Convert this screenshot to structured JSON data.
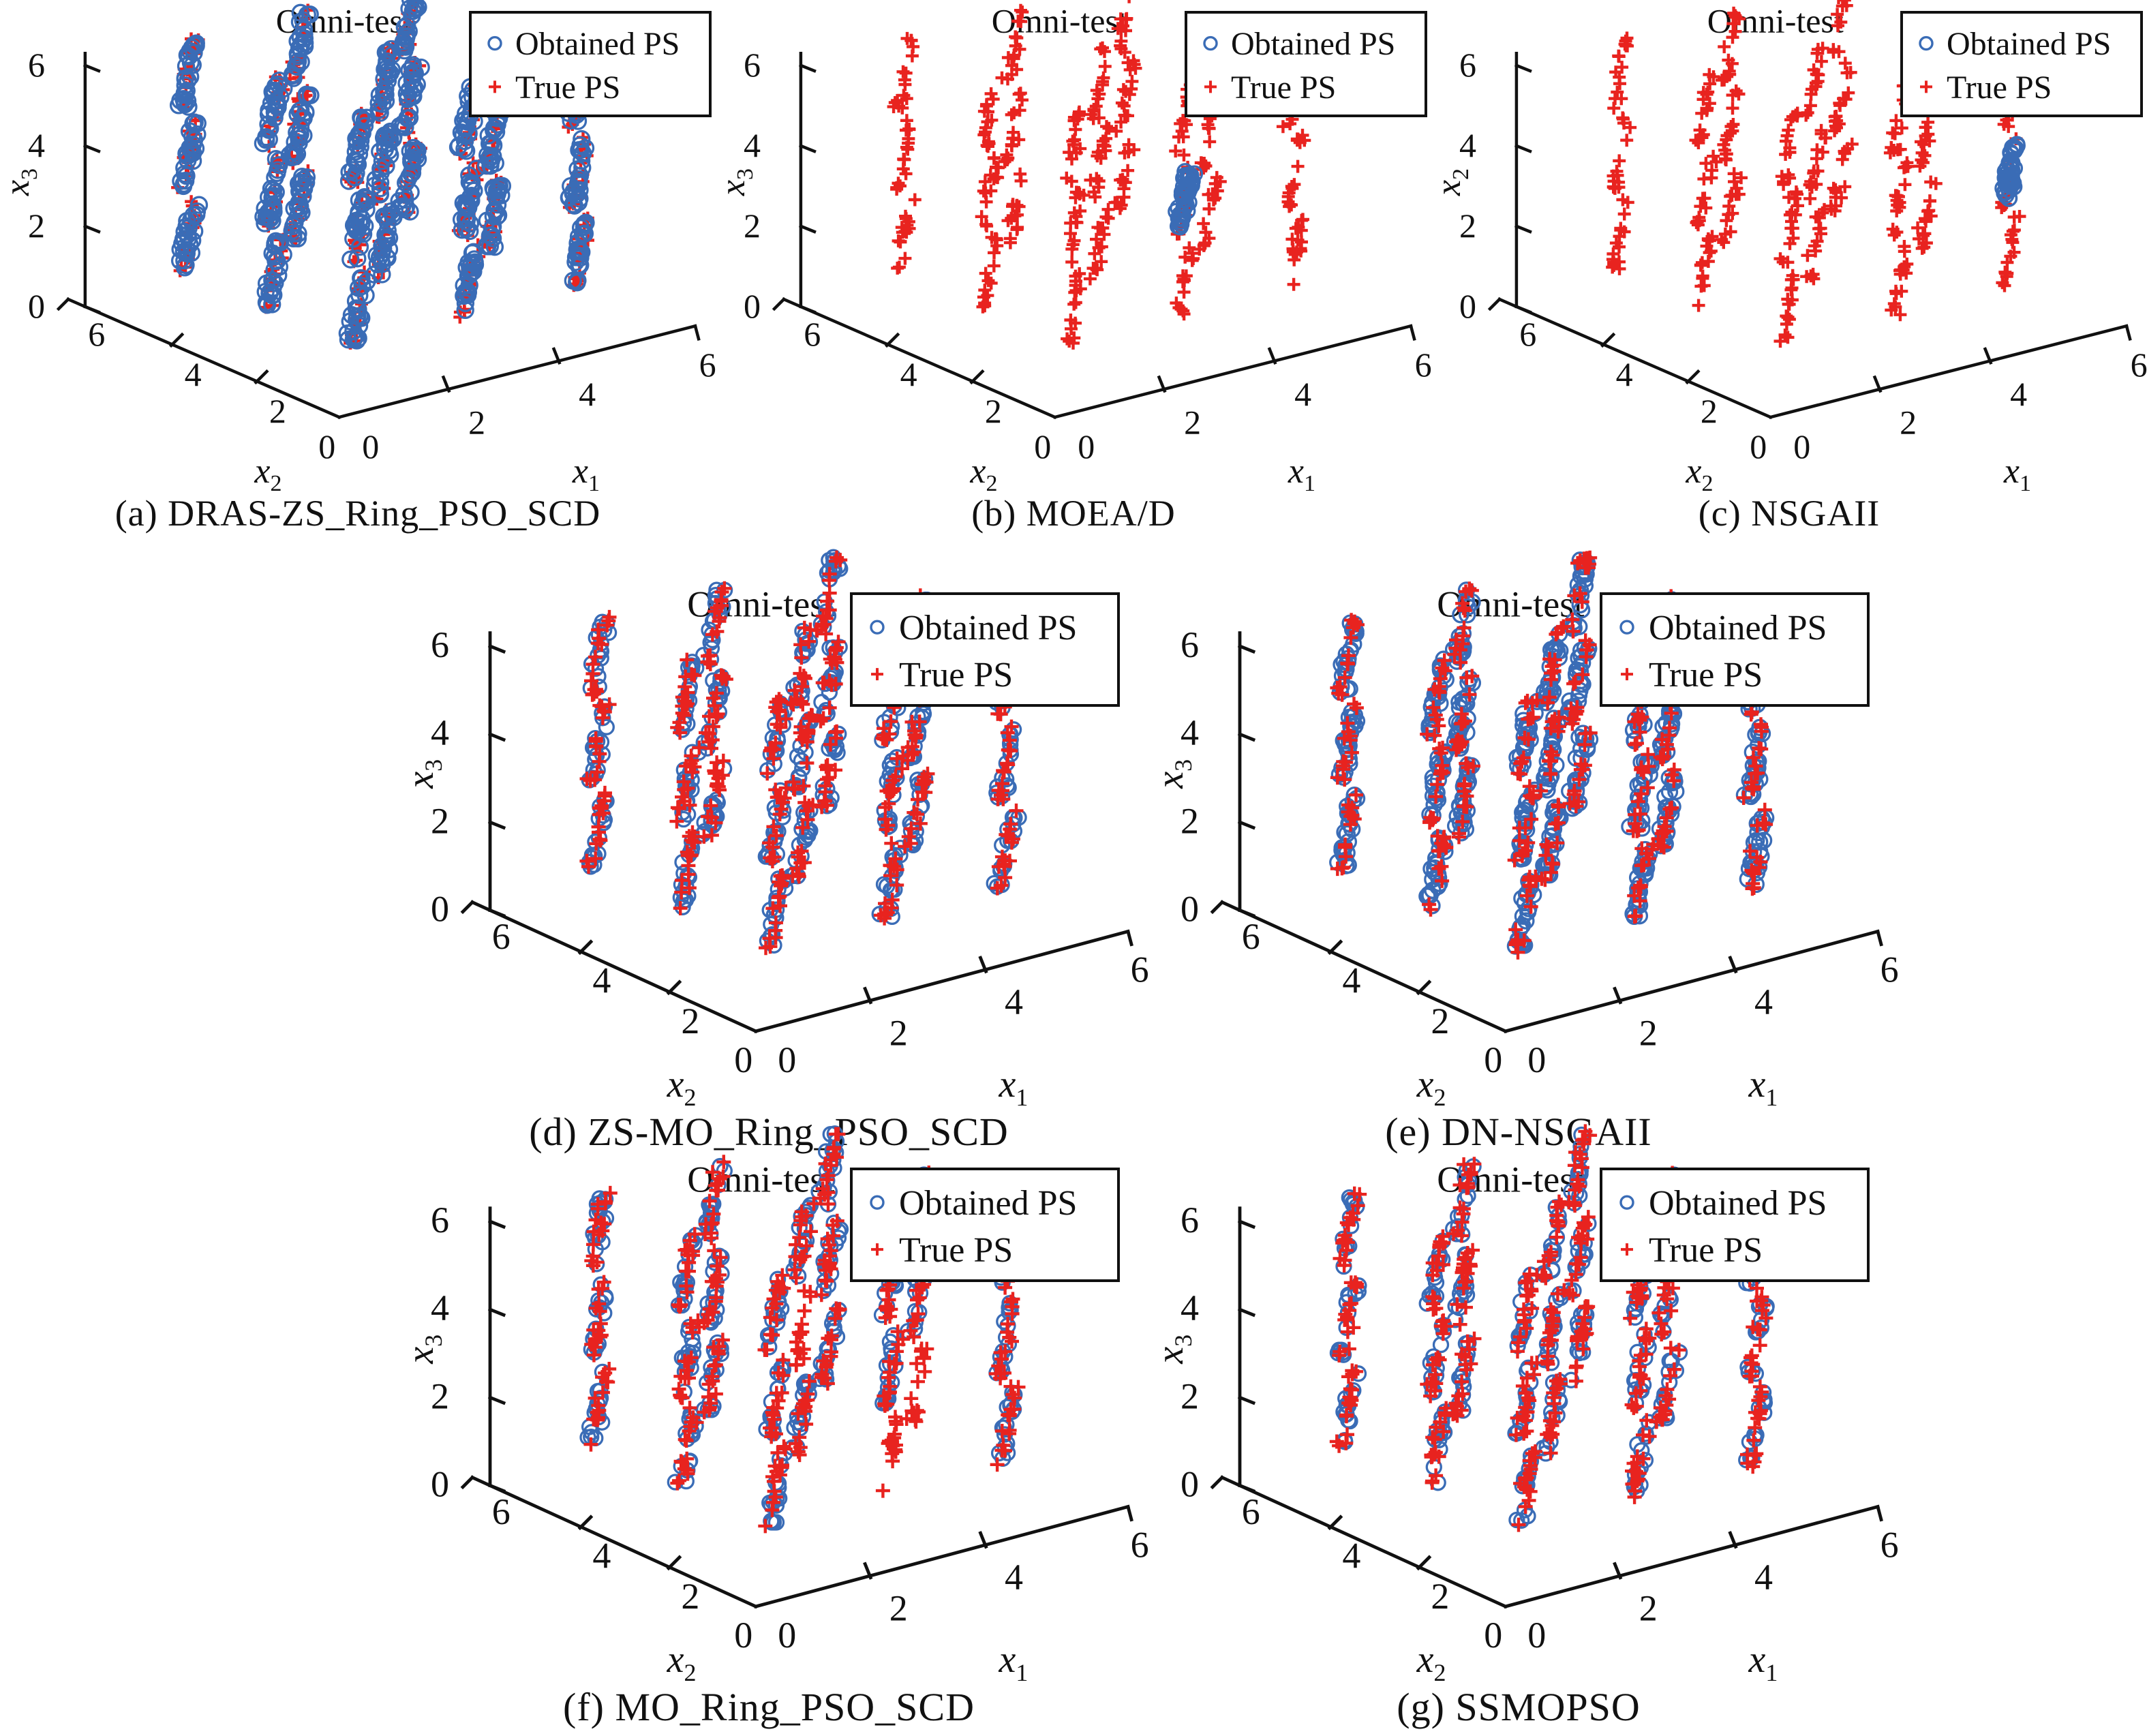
{
  "figure": {
    "background": "#ffffff",
    "description": "Seven 3D scatter subplots comparing obtained vs true Pareto sets on the Omni-test problem"
  },
  "colors": {
    "obtained": "#3a6cb6",
    "true": "#e8231f",
    "axis": "#111111",
    "text": "#111111",
    "legend_border": "#111111",
    "legend_bg": "#ffffff"
  },
  "legend": {
    "items": [
      {
        "key": "obtained",
        "label": "Obtained PS",
        "marker": "circle"
      },
      {
        "key": "true",
        "label": "True PS",
        "marker": "plus"
      }
    ]
  },
  "chart_data": [
    {
      "id": "a",
      "type": "scatter3d",
      "title": "Omni-test",
      "caption": "(a) DRAS-ZS_Ring_PSO_SCD",
      "axes": {
        "x1": {
          "label": "x",
          "sub": "1",
          "ticks": [
            0,
            2,
            4,
            6
          ],
          "range": [
            0,
            6
          ]
        },
        "x2": {
          "label": "x",
          "sub": "2",
          "ticks": [
            0,
            2,
            4,
            6
          ],
          "range": [
            0,
            6
          ]
        },
        "z": {
          "label": "x",
          "sub": "3",
          "ticks": [
            0,
            2,
            4,
            6
          ],
          "range": [
            0,
            6
          ]
        }
      },
      "view": {
        "azimuth_deg": -37.5,
        "elevation_deg": 30
      },
      "cluster_grid": {
        "bases": [
          1,
          3,
          5
        ],
        "interval_length": 1,
        "cluster_count": 27
      },
      "series": [
        {
          "name": "True PS",
          "key": "true",
          "marker": "plus",
          "clusters": "all",
          "points_per_cluster": 16
        },
        {
          "name": "Obtained PS",
          "key": "obtained",
          "marker": "circle",
          "clusters": "all",
          "points_per_cluster": 26
        }
      ]
    },
    {
      "id": "b",
      "type": "scatter3d",
      "title": "Omni-test",
      "caption": "(b) MOEA/D",
      "axes": {
        "x1": {
          "label": "x",
          "sub": "1",
          "ticks": [
            0,
            2,
            4,
            6
          ],
          "range": [
            0,
            6
          ]
        },
        "x2": {
          "label": "x",
          "sub": "2",
          "ticks": [
            0,
            2,
            4,
            6
          ],
          "range": [
            0,
            6
          ]
        },
        "z": {
          "label": "x",
          "sub": "3",
          "ticks": [
            0,
            2,
            4,
            6
          ],
          "range": [
            0,
            6
          ]
        }
      },
      "view": {
        "azimuth_deg": -37.5,
        "elevation_deg": 30
      },
      "cluster_grid": {
        "bases": [
          1,
          3,
          5
        ],
        "interval_length": 1,
        "cluster_count": 27
      },
      "series": [
        {
          "name": "True PS",
          "key": "true",
          "marker": "plus",
          "clusters": "all",
          "points_per_cluster": 16
        },
        {
          "name": "Obtained PS",
          "key": "obtained",
          "marker": "circle",
          "clusters": {
            "only": [
              [
                3,
                1,
                3
              ]
            ]
          },
          "points_per_cluster": 46
        }
      ]
    },
    {
      "id": "c",
      "type": "scatter3d",
      "title": "Omni-test",
      "caption": "(c) NSGAII",
      "axes": {
        "x1": {
          "label": "x",
          "sub": "1",
          "ticks": [
            0,
            2,
            4,
            6
          ],
          "range": [
            0,
            6
          ]
        },
        "x2": {
          "label": "x",
          "sub": "2",
          "ticks": [
            0,
            2,
            4,
            6
          ],
          "range": [
            0,
            6
          ]
        },
        "z": {
          "label": "x",
          "sub": "2",
          "ticks": [
            0,
            2,
            4,
            6
          ],
          "range": [
            0,
            6
          ]
        }
      },
      "view": {
        "azimuth_deg": -37.5,
        "elevation_deg": 30
      },
      "cluster_grid": {
        "bases": [
          1,
          3,
          5
        ],
        "interval_length": 1,
        "cluster_count": 27
      },
      "series": [
        {
          "name": "True PS",
          "key": "true",
          "marker": "plus",
          "clusters": "all",
          "points_per_cluster": 16
        },
        {
          "name": "Obtained PS",
          "key": "obtained",
          "marker": "circle",
          "clusters": {
            "only": [
              [
                5,
                1,
                3
              ]
            ]
          },
          "points_per_cluster": 46
        }
      ]
    },
    {
      "id": "d",
      "type": "scatter3d",
      "title": "Omni-test",
      "caption": "(d) ZS-MO_Ring_PSO_SCD",
      "axes": {
        "x1": {
          "label": "x",
          "sub": "1",
          "ticks": [
            0,
            2,
            4,
            6
          ],
          "range": [
            0,
            6
          ]
        },
        "x2": {
          "label": "x",
          "sub": "2",
          "ticks": [
            0,
            2,
            4,
            6
          ],
          "range": [
            0,
            6
          ]
        },
        "z": {
          "label": "x",
          "sub": "3",
          "ticks": [
            0,
            2,
            4,
            6
          ],
          "range": [
            0,
            6
          ]
        }
      },
      "view": {
        "azimuth_deg": -37.5,
        "elevation_deg": 30
      },
      "cluster_grid": {
        "bases": [
          1,
          3,
          5
        ],
        "interval_length": 1,
        "cluster_count": 27
      },
      "series": [
        {
          "name": "Obtained PS",
          "key": "obtained",
          "marker": "circle",
          "clusters": "all",
          "points_per_cluster": 17
        },
        {
          "name": "True PS",
          "key": "true",
          "marker": "plus",
          "clusters": "all",
          "points_per_cluster": 16
        }
      ]
    },
    {
      "id": "e",
      "type": "scatter3d",
      "title": "Omni-test",
      "caption": "(e) DN-NSGAII",
      "axes": {
        "x1": {
          "label": "x",
          "sub": "1",
          "ticks": [
            0,
            2,
            4,
            6
          ],
          "range": [
            0,
            6
          ]
        },
        "x2": {
          "label": "x",
          "sub": "2",
          "ticks": [
            0,
            2,
            4,
            6
          ],
          "range": [
            0,
            6
          ]
        },
        "z": {
          "label": "x",
          "sub": "3",
          "ticks": [
            0,
            2,
            4,
            6
          ],
          "range": [
            0,
            6
          ]
        }
      },
      "view": {
        "azimuth_deg": -37.5,
        "elevation_deg": 30
      },
      "cluster_grid": {
        "bases": [
          1,
          3,
          5
        ],
        "interval_length": 1,
        "cluster_count": 27
      },
      "series": [
        {
          "name": "Obtained PS",
          "key": "obtained",
          "marker": "circle",
          "clusters": "all",
          "points_per_cluster": 24
        },
        {
          "name": "True PS",
          "key": "true",
          "marker": "plus",
          "clusters": "all",
          "points_per_cluster": 14
        }
      ]
    },
    {
      "id": "f",
      "type": "scatter3d",
      "title": "Omni-test",
      "caption": "(f) MO_Ring_PSO_SCD",
      "axes": {
        "x1": {
          "label": "x",
          "sub": "1",
          "ticks": [
            0,
            2,
            4,
            6
          ],
          "range": [
            0,
            6
          ]
        },
        "x2": {
          "label": "x",
          "sub": "2",
          "ticks": [
            0,
            2,
            4,
            6
          ],
          "range": [
            0,
            6
          ]
        },
        "z": {
          "label": "x",
          "sub": "3",
          "ticks": [
            0,
            2,
            4,
            6
          ],
          "range": [
            0,
            6
          ]
        }
      },
      "view": {
        "azimuth_deg": -37.5,
        "elevation_deg": 30
      },
      "cluster_grid": {
        "bases": [
          1,
          3,
          5
        ],
        "interval_length": 1,
        "cluster_count": 27
      },
      "series": [
        {
          "name": "Obtained PS",
          "key": "obtained",
          "marker": "circle",
          "clusters": {
            "except": [
              [
                3,
                3,
                3
              ],
              [
                5,
                3,
                1
              ],
              [
                3,
                1,
                1
              ]
            ]
          },
          "points_per_cluster": 16
        },
        {
          "name": "True PS",
          "key": "true",
          "marker": "plus",
          "clusters": "all",
          "points_per_cluster": 16
        }
      ]
    },
    {
      "id": "g",
      "type": "scatter3d",
      "title": "Omni-test",
      "caption": "(g) SSMOPSO",
      "axes": {
        "x1": {
          "label": "x",
          "sub": "1",
          "ticks": [
            0,
            2,
            4,
            6
          ],
          "range": [
            0,
            6
          ]
        },
        "x2": {
          "label": "x",
          "sub": "2",
          "ticks": [
            0,
            2,
            4,
            6
          ],
          "range": [
            0,
            6
          ]
        },
        "z": {
          "label": "x",
          "sub": "3",
          "ticks": [
            0,
            2,
            4,
            6
          ],
          "range": [
            0,
            6
          ]
        }
      },
      "view": {
        "azimuth_deg": -37.5,
        "elevation_deg": 30
      },
      "cluster_grid": {
        "bases": [
          1,
          3,
          5
        ],
        "interval_length": 1,
        "cluster_count": 27
      },
      "series": [
        {
          "name": "Obtained PS",
          "key": "obtained",
          "marker": "circle",
          "clusters": "all",
          "points_per_cluster": 13
        },
        {
          "name": "True PS",
          "key": "true",
          "marker": "plus",
          "clusters": "all",
          "points_per_cluster": 17
        }
      ]
    }
  ]
}
